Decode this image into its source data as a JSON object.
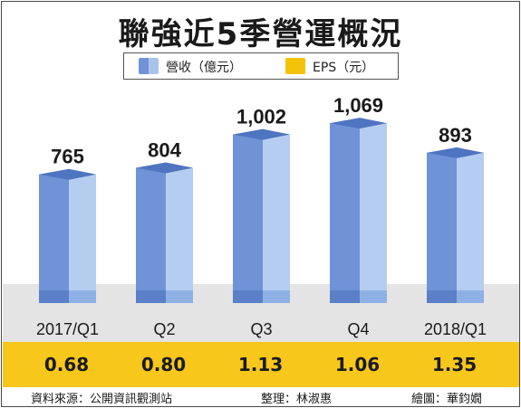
{
  "title": "聯強近5季營運概況",
  "legend": {
    "revenue": "營收（億元）",
    "eps": "EPS（元）"
  },
  "colors": {
    "bar_front": "#8fb0e4",
    "bar_side": "#6f93d6",
    "bar_top": "#4f74c0",
    "eps_band": "#f7c71b",
    "floor": "#e4e4e4"
  },
  "chart_data": {
    "type": "bar",
    "title": "聯強近5季營運概況",
    "categories": [
      "2017/Q1",
      "Q2",
      "Q3",
      "Q4",
      "2018/Q1"
    ],
    "series": [
      {
        "name": "營收（億元）",
        "values": [
          765,
          804,
          1002,
          1069,
          893
        ],
        "labels": [
          "765",
          "804",
          "1,002",
          "1,069",
          "893"
        ]
      },
      {
        "name": "EPS（元）",
        "values": [
          0.68,
          0.8,
          1.13,
          1.06,
          1.35
        ],
        "labels": [
          "0.68",
          "0.80",
          "1.13",
          "1.06",
          "1.35"
        ]
      }
    ],
    "xlabel": "",
    "ylabel": "",
    "legend": "top",
    "grid": false
  },
  "footer": {
    "source": "資料來源：公開資訊觀測站",
    "editor": "整理：林淑惠",
    "artist": "繪圖：華鈞嫺"
  }
}
